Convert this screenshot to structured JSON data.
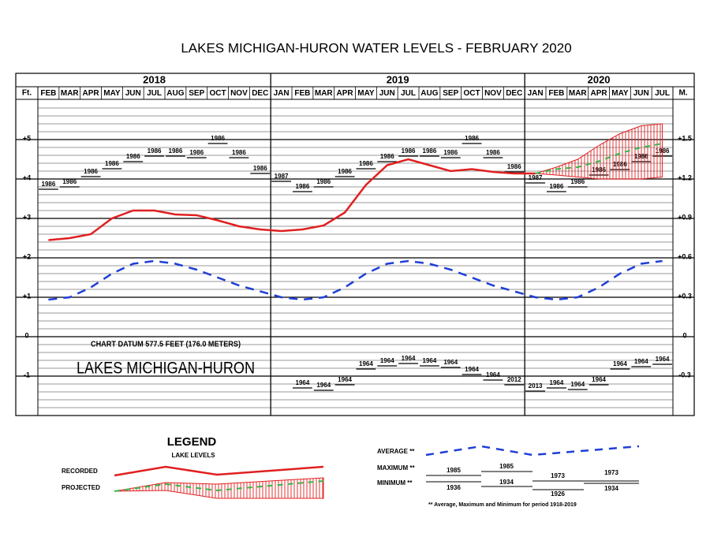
{
  "chart_data": {
    "type": "water-levels",
    "title": "LAKES MICHIGAN-HURON WATER LEVELS - FEBRUARY 2020",
    "years": [
      "2018",
      "2019",
      "2020"
    ],
    "categories": [
      "FEB",
      "MAR",
      "APR",
      "MAY",
      "JUN",
      "JUL",
      "AUG",
      "SEP",
      "OCT",
      "NOV",
      "DEC",
      "JAN",
      "FEB",
      "MAR",
      "APR",
      "MAY",
      "JUN",
      "JUL",
      "AUG",
      "SEP",
      "OCT",
      "NOV",
      "DEC",
      "JAN",
      "FEB",
      "MAR",
      "APR",
      "MAY",
      "JUN",
      "JUL"
    ],
    "y_label": "Ft.",
    "y2_label": "M.",
    "ylim": [
      -2,
      6
    ],
    "yticks": [
      -1,
      0,
      {
        "value": 1,
        "label": "+1"
      },
      {
        "value": 2,
        "label": "+2"
      },
      {
        "value": 3,
        "label": "+3"
      },
      {
        "value": 4,
        "label": "+4"
      },
      {
        "value": 5,
        "label": "+5"
      }
    ],
    "y2lim": [
      -0.6,
      1.8
    ],
    "y2ticks": [
      -0.3,
      0,
      {
        "value": 0.3,
        "label": "+0.3"
      },
      {
        "value": 0.6,
        "label": "+0.6"
      },
      {
        "value": 0.9,
        "label": "+0.9"
      },
      {
        "value": 1.2,
        "label": "+1.2"
      },
      {
        "value": 1.5,
        "label": "+1.5"
      }
    ],
    "series": [
      {
        "name": "RECORDED",
        "color": "#e02020",
        "values": [
          2.45,
          2.5,
          2.6,
          3.0,
          3.2,
          3.2,
          3.1,
          3.08,
          2.95,
          2.8,
          2.72,
          2.68,
          2.72,
          2.82,
          3.15,
          3.85,
          4.35,
          4.5,
          4.35,
          4.2,
          4.25,
          4.18,
          4.14,
          4.14,
          null,
          null,
          null,
          null,
          null,
          null
        ]
      },
      {
        "name": "PROJECTED",
        "color": "#39b54a",
        "values": [
          null,
          null,
          null,
          null,
          null,
          null,
          null,
          null,
          null,
          null,
          null,
          null,
          null,
          null,
          null,
          null,
          null,
          null,
          null,
          null,
          null,
          null,
          null,
          4.14,
          4.25,
          4.3,
          4.45,
          4.65,
          4.8,
          4.9
        ],
        "high": [
          null,
          null,
          null,
          null,
          null,
          null,
          null,
          null,
          null,
          null,
          null,
          null,
          null,
          null,
          null,
          null,
          null,
          null,
          null,
          null,
          null,
          null,
          null,
          4.14,
          4.3,
          4.5,
          4.85,
          5.15,
          5.35,
          5.4
        ],
        "low": [
          null,
          null,
          null,
          null,
          null,
          null,
          null,
          null,
          null,
          null,
          null,
          null,
          null,
          null,
          null,
          null,
          null,
          null,
          null,
          null,
          null,
          null,
          null,
          4.14,
          4.1,
          4.05,
          4.0,
          4.0,
          4.0,
          4.05
        ]
      },
      {
        "name": "AVERAGE **",
        "color": "#1f3fd6",
        "values": [
          0.94,
          1.0,
          1.25,
          1.6,
          1.85,
          1.92,
          1.85,
          1.7,
          1.5,
          1.3,
          1.15,
          1.0,
          0.94,
          1.0,
          1.25,
          1.6,
          1.85,
          1.92,
          1.85,
          1.7,
          1.5,
          1.3,
          1.15,
          1.0,
          0.94,
          1.0,
          1.25,
          1.6,
          1.85,
          1.92
        ]
      },
      {
        "name": "MAXIMUM **",
        "color": "#000000",
        "values": [
          3.74,
          3.8,
          4.06,
          4.26,
          4.44,
          4.58,
          4.58,
          4.54,
          4.9,
          4.54,
          4.14,
          3.94,
          3.68,
          3.8,
          4.06,
          4.26,
          4.44,
          4.58,
          4.58,
          4.54,
          4.9,
          4.54,
          4.18,
          3.9,
          3.68,
          3.8,
          4.1,
          4.24,
          4.44,
          4.58
        ],
        "years": [
          "1986",
          "1986",
          "1986",
          "1986",
          "1986",
          "1986",
          "1986",
          "1986",
          "1986",
          "1986",
          "1986",
          "1987",
          "1986",
          "1986",
          "1986",
          "1986",
          "1986",
          "1986",
          "1986",
          "1986",
          "1986",
          "1986",
          "1986",
          "1987",
          "1986",
          "1986",
          "1986",
          "1986",
          "1986",
          "1986"
        ]
      },
      {
        "name": "MINIMUM **",
        "color": "#000000",
        "values": [
          null,
          null,
          null,
          null,
          null,
          null,
          null,
          null,
          null,
          null,
          null,
          null,
          -1.3,
          -1.36,
          -1.22,
          -0.82,
          -0.74,
          -0.68,
          -0.74,
          -0.78,
          -0.96,
          -1.1,
          -1.22,
          -1.38,
          -1.3,
          -1.34,
          -1.22,
          -0.82,
          -0.76,
          -0.7
        ],
        "years": [
          null,
          null,
          null,
          null,
          null,
          null,
          null,
          null,
          null,
          null,
          null,
          null,
          "1964",
          "1964",
          "1964",
          "1964",
          "1964",
          "1964",
          "1964",
          "1964",
          "1964",
          "1964",
          "2012",
          "2013",
          "1964",
          "1964",
          "1964",
          "1964",
          "1964",
          "1964"
        ]
      }
    ],
    "annotations": [
      "CHART DATUM 577.5 FEET (176.0 METERS)",
      "LAKES MICHIGAN-HURON"
    ],
    "legend": {
      "title": "LEGEND",
      "subtitle": "LAKE LEVELS",
      "max_samples": [
        "1985",
        "1985",
        "1973",
        "1973"
      ],
      "min_samples": [
        "1936",
        "1934",
        "1926",
        "1934"
      ]
    },
    "note": "** Average, Maximum and Minimum for period 1918-2019"
  }
}
